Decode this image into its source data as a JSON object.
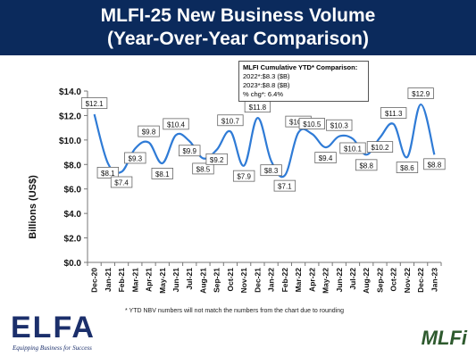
{
  "header": {
    "title_line1": "MLFI-25 New Business Volume",
    "title_line2": "(Year-Over-Year Comparison)",
    "bg_color": "#0b2a5c"
  },
  "info_box": {
    "heading": "MLFI Cumulative YTD* Comparison:",
    "line1": "2022*:$8.3 ($B)",
    "line2": "2023*:$8.8 ($B)",
    "line3": "% chg*:  6.4%"
  },
  "footnote": "*  YTD NBV numbers will not match the numbers from the chart due to rounding",
  "logo": {
    "text": "ELFA",
    "tagline": "Equipping Business for Success"
  },
  "brand": "MLFi",
  "chart_data": {
    "type": "line",
    "ylabel": "Billions (US$)",
    "ylim": [
      0,
      14
    ],
    "yticks": [
      0,
      2,
      4,
      6,
      8,
      10,
      12,
      14
    ],
    "ytick_labels": [
      "$0.0",
      "$2.0",
      "$4.0",
      "$6.0",
      "$8.0",
      "$10.0",
      "$12.0",
      "$14.0"
    ],
    "categories": [
      "Dec-20",
      "Jan-21",
      "Feb-21",
      "Mar-21",
      "Apr-21",
      "May-21",
      "Jun-21",
      "Jul-21",
      "Aug-21",
      "Sep-21",
      "Oct-21",
      "Nov-21",
      "Dec-21",
      "Jan-22",
      "Feb-22",
      "Mar-22",
      "Apr-22",
      "May-22",
      "Jun-22",
      "Jul-22",
      "Aug-22",
      "Sep-22",
      "Oct-22",
      "Nov-22",
      "Dec-22",
      "Jan-23"
    ],
    "values": [
      12.1,
      8.1,
      7.4,
      9.3,
      9.8,
      8.1,
      10.4,
      9.9,
      8.5,
      9.2,
      10.7,
      7.9,
      11.8,
      8.3,
      7.1,
      10.6,
      10.5,
      9.4,
      10.3,
      10.1,
      8.8,
      10.2,
      11.3,
      8.6,
      12.9,
      8.8
    ],
    "data_labels": [
      "$12.1",
      "$8.1",
      "$7.4",
      "$9.3",
      "$9.8",
      "$8.1",
      "$10.4",
      "$9.9",
      "$8.5",
      "$9.2",
      "$10.7",
      "$7.9",
      "$11.8",
      "$8.3",
      "$7.1",
      "$10.6",
      "$10.5",
      "$9.4",
      "$10.3",
      "$10.1",
      "$8.8",
      "$10.2",
      "$11.3",
      "$8.6",
      "$12.9",
      "$8.8"
    ],
    "line_color": "#2f7bd6",
    "grid": false
  }
}
